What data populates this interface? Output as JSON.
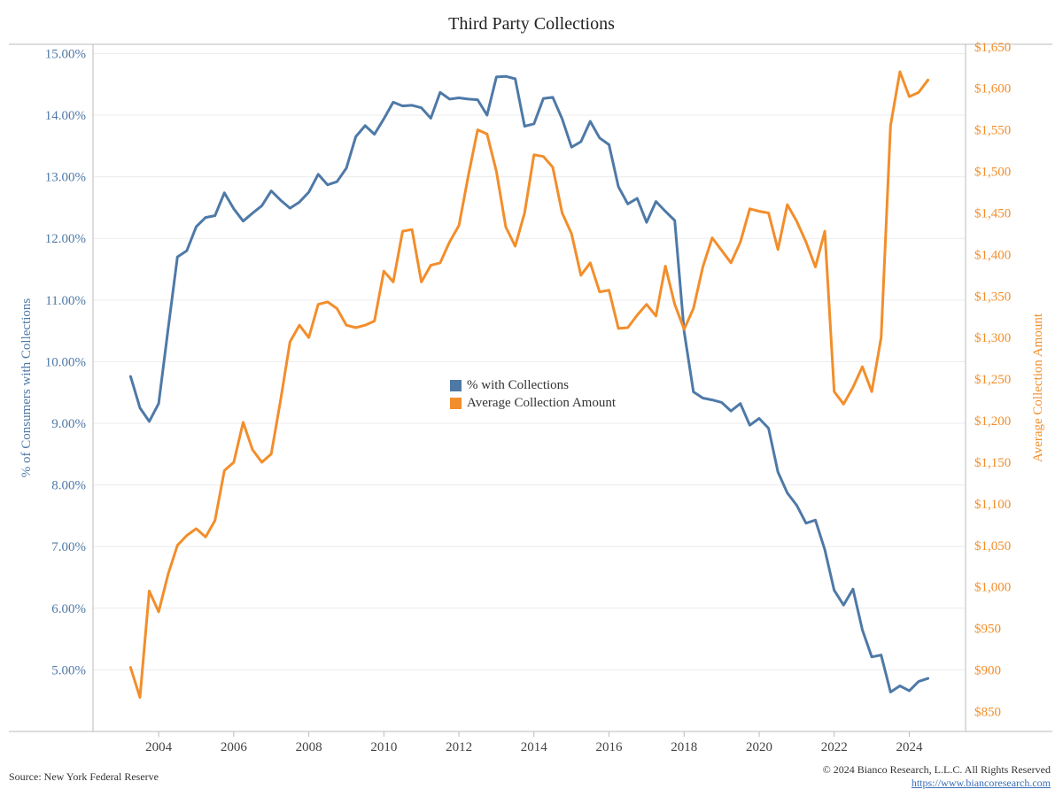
{
  "footer": {
    "source": "Source: New York Federal Reserve",
    "copyright": "© 2024 Bianco Research, L.L.C. All Rights Reserved",
    "url": "https://www.biancoresearch.com"
  },
  "chart_data": {
    "type": "line",
    "title": "Third Party Collections",
    "ylabel_left": "% of Consumers with Collections",
    "ylabel_right": "Average Collection Amount",
    "x_ticks": [
      "2004",
      "2006",
      "2008",
      "2010",
      "2012",
      "2014",
      "2016",
      "2018",
      "2020",
      "2022",
      "2024"
    ],
    "y_left_ticks": [
      "15.00%",
      "14.00%",
      "13.00%",
      "12.00%",
      "11.00%",
      "10.00%",
      "9.00%",
      "8.00%",
      "7.00%",
      "6.00%",
      "5.00%"
    ],
    "y_right_ticks": [
      "$1,650",
      "$1,600",
      "$1,550",
      "$1,500",
      "$1,450",
      "$1,400",
      "$1,350",
      "$1,300",
      "$1,250",
      "$1,200",
      "$1,150",
      "$1,100",
      "$1,050",
      "$1,000",
      "$950",
      "$900",
      "$850"
    ],
    "x_range": [
      2002.25,
      2025.5
    ],
    "y_left_range": [
      4.0,
      15.15
    ],
    "y_right_range": [
      826,
      1653
    ],
    "grid": true,
    "legend_position": "center",
    "colors": {
      "left_series": "#4e79a7",
      "right_series": "#f28e2b",
      "grid": "#ececec",
      "axis": "#bbbbbb"
    },
    "x": [
      2003.25,
      2003.5,
      2003.75,
      2004.0,
      2004.25,
      2004.5,
      2004.75,
      2005.0,
      2005.25,
      2005.5,
      2005.75,
      2006.0,
      2006.25,
      2006.5,
      2006.75,
      2007.0,
      2007.25,
      2007.5,
      2007.75,
      2008.0,
      2008.25,
      2008.5,
      2008.75,
      2009.0,
      2009.25,
      2009.5,
      2009.75,
      2010.0,
      2010.25,
      2010.5,
      2010.75,
      2011.0,
      2011.25,
      2011.5,
      2011.75,
      2012.0,
      2012.25,
      2012.5,
      2012.75,
      2013.0,
      2013.25,
      2013.5,
      2013.75,
      2014.0,
      2014.25,
      2014.5,
      2014.75,
      2015.0,
      2015.25,
      2015.5,
      2015.75,
      2016.0,
      2016.25,
      2016.5,
      2016.75,
      2017.0,
      2017.25,
      2017.5,
      2017.75,
      2018.0,
      2018.25,
      2018.5,
      2018.75,
      2019.0,
      2019.25,
      2019.5,
      2019.75,
      2020.0,
      2020.25,
      2020.5,
      2020.75,
      2021.0,
      2021.25,
      2021.5,
      2021.75,
      2022.0,
      2022.25,
      2022.5,
      2022.75,
      2023.0,
      2023.25,
      2023.5,
      2023.75,
      2024.0,
      2024.25,
      2024.5
    ],
    "series": [
      {
        "name": "% with Collections",
        "axis": "left",
        "values": [
          9.76,
          9.25,
          9.03,
          9.32,
          10.52,
          11.7,
          11.8,
          12.19,
          12.34,
          12.37,
          12.74,
          12.48,
          12.28,
          12.41,
          12.53,
          12.77,
          12.62,
          12.49,
          12.59,
          12.75,
          13.04,
          12.87,
          12.92,
          13.14,
          13.65,
          13.83,
          13.69,
          13.94,
          14.21,
          14.15,
          14.16,
          14.12,
          13.95,
          14.37,
          14.26,
          14.28,
          14.26,
          14.25,
          14.0,
          14.62,
          14.63,
          14.59,
          13.82,
          13.86,
          14.27,
          14.29,
          13.94,
          13.48,
          13.57,
          13.9,
          13.63,
          13.52,
          12.84,
          12.56,
          12.65,
          12.26,
          12.6,
          12.44,
          12.29,
          10.49,
          9.51,
          9.41,
          9.38,
          9.34,
          9.2,
          9.32,
          8.97,
          9.08,
          8.92,
          8.21,
          7.87,
          7.67,
          7.38,
          7.43,
          6.95,
          6.29,
          6.05,
          6.31,
          5.65,
          5.21,
          5.24,
          4.64,
          4.74,
          4.66,
          4.81,
          4.86
        ]
      },
      {
        "name": "Average Collection Amount",
        "axis": "right",
        "values": [
          903,
          867,
          995,
          970,
          1015,
          1050,
          1062,
          1070,
          1060,
          1080,
          1140,
          1150,
          1198,
          1165,
          1150,
          1160,
          1225,
          1295,
          1315,
          1300,
          1340,
          1343,
          1335,
          1315,
          1312,
          1315,
          1320,
          1380,
          1367,
          1428,
          1430,
          1367,
          1387,
          1390,
          1415,
          1435,
          1495,
          1550,
          1545,
          1500,
          1433,
          1410,
          1450,
          1520,
          1518,
          1505,
          1450,
          1425,
          1375,
          1390,
          1355,
          1357,
          1311,
          1312,
          1327,
          1340,
          1326,
          1386,
          1340,
          1310,
          1335,
          1385,
          1420,
          1405,
          1390,
          1415,
          1455,
          1452,
          1450,
          1406,
          1460,
          1440,
          1415,
          1385,
          1428,
          1235,
          1220,
          1240,
          1265,
          1235,
          1300,
          1555,
          1620,
          1590,
          1595,
          1610
        ]
      }
    ]
  }
}
